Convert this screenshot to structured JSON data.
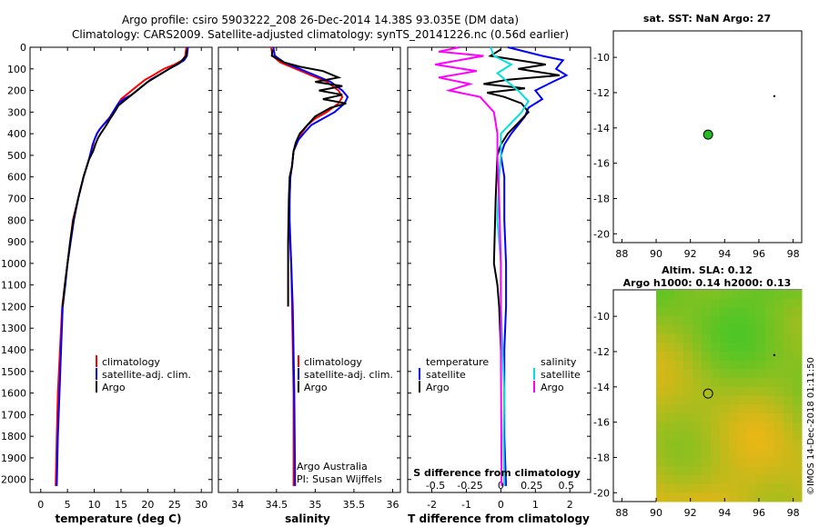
{
  "header": {
    "title_line1": "Argo profile: csiro 5903222_208 26-Dec-2014 14.38S 93.035E (DM data)",
    "title_line2": "Climatology: CARS2009. Satellite-adjusted climatology: synTS_20141226.nc (0.56d earlier)"
  },
  "colors": {
    "climatology": "#ff0000",
    "satellite": "#0000ff",
    "argo": "#000000",
    "sal_satellite": "#00e0e0",
    "sal_argo": "#ff00ff",
    "map_point": "#22bb22"
  },
  "chart_data": [
    {
      "type": "line",
      "id": "temperature",
      "xlabel": "temperature (deg C)",
      "xlim": [
        -2,
        32
      ],
      "xticks": [
        0,
        5,
        10,
        15,
        20,
        25,
        30
      ],
      "ylim": [
        0,
        2060
      ],
      "yticks": [
        0,
        100,
        200,
        300,
        400,
        500,
        600,
        700,
        800,
        900,
        1000,
        1100,
        1200,
        1300,
        1400,
        1500,
        1600,
        1700,
        1800,
        1900,
        2000
      ],
      "legend": [
        "climatology",
        "satellite-adj. clim.",
        "Argo"
      ],
      "series": [
        {
          "name": "climatology",
          "color": "#ff0000",
          "x": [
            27.2,
            27,
            26.5,
            25,
            23,
            21,
            19.5,
            18,
            16,
            15,
            14.5,
            14,
            13.5,
            13,
            12,
            11,
            10.5,
            10,
            9.8,
            9,
            8,
            7,
            6,
            5.5,
            5,
            4.5,
            4,
            3.6,
            3.2,
            3,
            2.8
          ],
          "y": [
            0,
            40,
            60,
            80,
            100,
            130,
            150,
            180,
            220,
            240,
            260,
            280,
            300,
            320,
            350,
            380,
            400,
            430,
            450,
            520,
            600,
            700,
            800,
            900,
            1000,
            1100,
            1200,
            1400,
            1600,
            1800,
            2030
          ]
        },
        {
          "name": "satellite-adj. clim.",
          "color": "#0000ff",
          "x": [
            27.5,
            27.3,
            26.8,
            25.5,
            24,
            22,
            20.5,
            19,
            17,
            15.5,
            14.5,
            14,
            13.5,
            12.8,
            12,
            11,
            10.5,
            10,
            9.7,
            9,
            8,
            7,
            6.2,
            5.6,
            5,
            4.6,
            4.1,
            3.8,
            3.5,
            3.2,
            3
          ],
          "y": [
            0,
            40,
            60,
            80,
            100,
            130,
            150,
            180,
            220,
            240,
            260,
            280,
            300,
            330,
            350,
            380,
            400,
            430,
            450,
            520,
            600,
            700,
            800,
            900,
            1000,
            1100,
            1200,
            1400,
            1600,
            1800,
            2030
          ]
        },
        {
          "name": "Argo",
          "color": "#000000",
          "x": [
            27.3,
            27.2,
            26,
            24,
            22,
            20,
            18.5,
            17,
            15.5,
            14.5,
            13.8,
            13,
            12.5,
            12,
            11.2,
            10.7,
            10.2,
            9.8,
            9,
            8,
            7,
            6.1,
            5.5,
            5,
            4.5,
            4.1
          ],
          "y": [
            10,
            40,
            70,
            100,
            130,
            160,
            190,
            220,
            250,
            270,
            300,
            330,
            350,
            370,
            400,
            420,
            450,
            480,
            520,
            600,
            700,
            800,
            900,
            1000,
            1100,
            1200
          ]
        }
      ]
    },
    {
      "type": "line",
      "id": "salinity",
      "xlabel": "salinity",
      "xlim": [
        33.75,
        36.1
      ],
      "xticks": [
        34,
        34.5,
        35,
        35.5,
        36
      ],
      "ylim": [
        0,
        2060
      ],
      "legend": [
        "climatology",
        "satellite-adj. clim.",
        "Argo"
      ],
      "annotation_line1": "Argo Australia",
      "annotation_line2": "PI: Susan Wijffels",
      "series": [
        {
          "name": "climatology",
          "color": "#ff0000",
          "x": [
            34.43,
            34.45,
            34.55,
            34.75,
            34.95,
            35.15,
            35.3,
            35.35,
            35.3,
            35.15,
            35.0,
            34.9,
            34.82,
            34.78,
            34.72,
            34.7,
            34.68,
            34.67,
            34.66,
            34.69,
            34.7,
            34.72,
            34.72
          ],
          "y": [
            0,
            40,
            70,
            100,
            130,
            160,
            200,
            230,
            260,
            300,
            330,
            360,
            400,
            430,
            480,
            550,
            600,
            700,
            800,
            1000,
            1200,
            1600,
            2030
          ]
        },
        {
          "name": "satellite-adj. clim.",
          "color": "#0000ff",
          "x": [
            34.46,
            34.48,
            34.6,
            34.8,
            35.0,
            35.2,
            35.35,
            35.42,
            35.38,
            35.25,
            35.1,
            34.95,
            34.85,
            34.78,
            34.72,
            34.7,
            34.68,
            34.67,
            34.67,
            34.69,
            34.71,
            34.73,
            34.74
          ],
          "y": [
            0,
            40,
            70,
            100,
            130,
            160,
            200,
            230,
            260,
            300,
            330,
            360,
            400,
            430,
            480,
            550,
            600,
            700,
            800,
            1000,
            1200,
            1600,
            2030
          ]
        },
        {
          "name": "Argo",
          "color": "#000000",
          "x": [
            34.45,
            34.44,
            34.6,
            34.8,
            35.1,
            35.3,
            35.0,
            35.35,
            35.05,
            35.35,
            35.1,
            35.4,
            35.2,
            35.0,
            34.9,
            34.8,
            34.75,
            34.72,
            34.7,
            34.67,
            34.66,
            34.65,
            34.65
          ],
          "y": [
            10,
            40,
            70,
            90,
            110,
            140,
            160,
            180,
            200,
            220,
            240,
            260,
            280,
            320,
            360,
            400,
            440,
            480,
            550,
            600,
            700,
            900,
            1200
          ]
        }
      ]
    },
    {
      "type": "line",
      "id": "difference",
      "xlabel": "T difference from climatology",
      "xlabel2": "S difference from climatology",
      "xlim": [
        -2.7,
        2.6
      ],
      "xticks": [
        -2,
        -1,
        0,
        1,
        2
      ],
      "x2ticks_labels": [
        "-0.5",
        "-0.25",
        "0",
        "0.25",
        "0.5"
      ],
      "ylim": [
        0,
        2060
      ],
      "legend_left_title": "temperature",
      "legend_right_title": "salinity",
      "legend_left": [
        "satellite",
        "Argo"
      ],
      "legend_right": [
        "satellite",
        "Argo"
      ],
      "series": [
        {
          "name": "T satellite",
          "color": "#0000ff",
          "x": [
            0.2,
            1.2,
            1.8,
            1.7,
            1.6,
            1.9,
            1.5,
            1.0,
            1.2,
            0.8,
            0.7,
            0.5,
            0.3,
            0.1,
            0.0,
            0.1,
            0.1,
            0.15,
            0.15,
            0.1,
            0.1,
            0.1,
            0.15
          ],
          "y": [
            0,
            40,
            60,
            80,
            100,
            130,
            160,
            200,
            240,
            280,
            320,
            360,
            400,
            450,
            500,
            600,
            800,
            1000,
            1200,
            1400,
            1600,
            1800,
            2030
          ]
        },
        {
          "name": "T Argo",
          "color": "#000000",
          "x": [
            0,
            -0.3,
            0.5,
            1.3,
            0.5,
            1.7,
            0.2,
            -0.5,
            0.7,
            -0.4,
            0.1,
            0.6,
            0.8,
            0.5,
            0.2,
            0.0,
            -0.1,
            -0.15,
            -0.2,
            -0.1,
            -0.05,
            0.0
          ],
          "y": [
            10,
            40,
            60,
            80,
            100,
            130,
            150,
            170,
            190,
            210,
            230,
            260,
            300,
            350,
            400,
            450,
            500,
            700,
            1000,
            1100,
            1200,
            1400
          ]
        },
        {
          "name": "S satellite",
          "color": "#00e0e0",
          "x": [
            -0.3,
            -0.2,
            0.3,
            -0.1,
            0.2,
            0.5,
            0.8,
            0.6,
            0.3,
            0.0,
            0.0,
            -0.05,
            -0.1,
            0.0,
            0.0,
            0.05,
            0.1,
            0.08,
            0.1
          ],
          "y": [
            0,
            40,
            80,
            120,
            160,
            200,
            250,
            300,
            350,
            400,
            500,
            600,
            800,
            1000,
            1200,
            1400,
            1600,
            1800,
            2030
          ]
        },
        {
          "name": "S Argo",
          "color": "#ff00ff",
          "x": [
            -1.2,
            -1.8,
            -0.5,
            -1.9,
            -0.7,
            -1.8,
            -0.9,
            -1.5,
            -0.6,
            -0.2,
            -0.1,
            -0.1,
            -0.05,
            0.0,
            0.0,
            0.02
          ],
          "y": [
            0,
            20,
            40,
            80,
            110,
            140,
            170,
            200,
            230,
            300,
            400,
            500,
            700,
            1000,
            1400,
            2030
          ]
        }
      ]
    },
    {
      "type": "scatter",
      "id": "sst_map",
      "title": "sat. SST: NaN Argo: 27",
      "xlim": [
        87.5,
        98.5
      ],
      "xticks": [
        88,
        90,
        92,
        94,
        96,
        98
      ],
      "ylim": [
        -20.5,
        -8.5
      ],
      "yticks": [
        -10,
        -12,
        -14,
        -16,
        -18,
        -20
      ],
      "points": [
        {
          "x": 93.035,
          "y": -14.38,
          "label": "Argo float"
        },
        {
          "x": 96.9,
          "y": -12.2,
          "label": "marker"
        }
      ]
    },
    {
      "type": "heatmap",
      "id": "sla_map",
      "title_line1": "Altim. SLA: 0.12",
      "title_line2": "Argo h1000: 0.14 h2000: 0.13",
      "xlim": [
        87.5,
        98.5
      ],
      "xticks": [
        88,
        90,
        92,
        94,
        96,
        98
      ],
      "ylim": [
        -20.5,
        -8.5
      ],
      "yticks": [
        -10,
        -12,
        -14,
        -16,
        -18,
        -20
      ],
      "points": [
        {
          "x": 93.035,
          "y": -14.38,
          "label": "Argo float"
        },
        {
          "x": 96.9,
          "y": -12.2,
          "label": "marker"
        }
      ]
    }
  ],
  "footer": {
    "credit": "©IMOS 14-Dec-2018 01:11:50"
  }
}
